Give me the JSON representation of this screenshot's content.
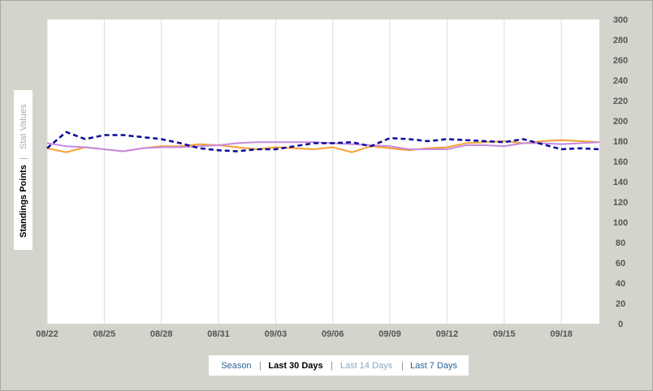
{
  "chart_data": {
    "type": "line",
    "categories": [
      "08/22",
      null,
      null,
      "08/25",
      null,
      null,
      "08/28",
      null,
      null,
      "08/31",
      null,
      null,
      "09/03",
      null,
      null,
      "09/06",
      null,
      null,
      "09/09",
      null,
      null,
      "09/12",
      null,
      null,
      "09/15",
      null,
      null,
      "09/18",
      null,
      null
    ],
    "series": [
      {
        "color": "#f5a033",
        "dash": false,
        "values": [
          173,
          169,
          174,
          172,
          170,
          173,
          175,
          175,
          177,
          176,
          174,
          172,
          174,
          173,
          172,
          174,
          169,
          175,
          173,
          171,
          173,
          174,
          178,
          179,
          180,
          178,
          180,
          181,
          180,
          179
        ]
      },
      {
        "color": "#c58ae0",
        "dash": false,
        "values": [
          178,
          175,
          174,
          172,
          170,
          173,
          174,
          174,
          175,
          176,
          178,
          179,
          179,
          179,
          179,
          178,
          177,
          176,
          175,
          172,
          172,
          172,
          176,
          176,
          175,
          178,
          178,
          177,
          178,
          179
        ]
      },
      {
        "color": "#0a0a9a",
        "dash": true,
        "values": [
          173,
          189,
          182,
          186,
          186,
          184,
          182,
          178,
          173,
          171,
          170,
          172,
          172,
          175,
          178,
          178,
          179,
          175,
          183,
          182,
          180,
          182,
          181,
          180,
          179,
          182,
          177,
          172,
          173,
          172
        ]
      }
    ],
    "ylim": [
      0,
      300
    ],
    "yticks": [
      0,
      20,
      40,
      60,
      80,
      100,
      120,
      140,
      160,
      180,
      200,
      220,
      240,
      260,
      280,
      300
    ],
    "y_axis_side": "right",
    "grid": "x"
  },
  "side_tabs": [
    "Standings Points",
    "Stat Values"
  ],
  "range_tabs": [
    "Season",
    "Last 30 Days",
    "Last 14 Days",
    "Last 7 Days"
  ]
}
